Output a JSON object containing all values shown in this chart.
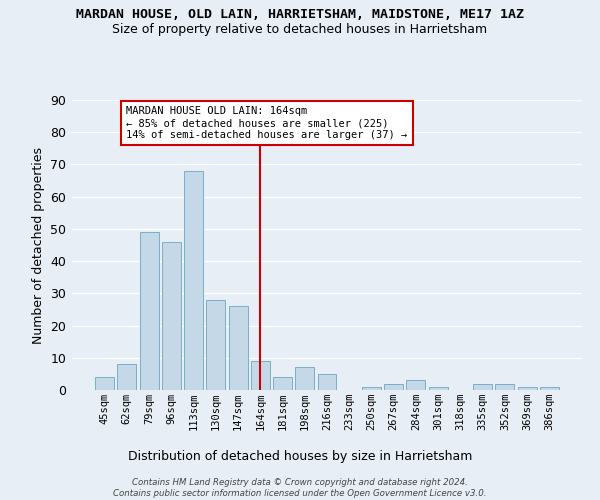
{
  "title_line1": "MARDAN HOUSE, OLD LAIN, HARRIETSHAM, MAIDSTONE, ME17 1AZ",
  "title_line2": "Size of property relative to detached houses in Harrietsham",
  "xlabel": "Distribution of detached houses by size in Harrietsham",
  "ylabel": "Number of detached properties",
  "categories": [
    "45sqm",
    "62sqm",
    "79sqm",
    "96sqm",
    "113sqm",
    "130sqm",
    "147sqm",
    "164sqm",
    "181sqm",
    "198sqm",
    "216sqm",
    "233sqm",
    "250sqm",
    "267sqm",
    "284sqm",
    "301sqm",
    "318sqm",
    "335sqm",
    "352sqm",
    "369sqm",
    "386sqm"
  ],
  "values": [
    4,
    8,
    49,
    46,
    68,
    28,
    26,
    9,
    4,
    7,
    5,
    0,
    1,
    2,
    3,
    1,
    0,
    2,
    2,
    1,
    1
  ],
  "bar_color": "#c5d8e8",
  "bar_edge_color": "#7aafc8",
  "vline_index": 7,
  "vline_color": "#cc0000",
  "annotation_text": "MARDAN HOUSE OLD LAIN: 164sqm\n← 85% of detached houses are smaller (225)\n14% of semi-detached houses are larger (37) →",
  "annotation_box_color": "white",
  "annotation_box_edge": "#cc0000",
  "ylim": [
    0,
    90
  ],
  "yticks": [
    0,
    10,
    20,
    30,
    40,
    50,
    60,
    70,
    80,
    90
  ],
  "bg_color": "#e8eef5",
  "grid_color": "white",
  "footnote": "Contains HM Land Registry data © Crown copyright and database right 2024.\nContains public sector information licensed under the Open Government Licence v3.0."
}
